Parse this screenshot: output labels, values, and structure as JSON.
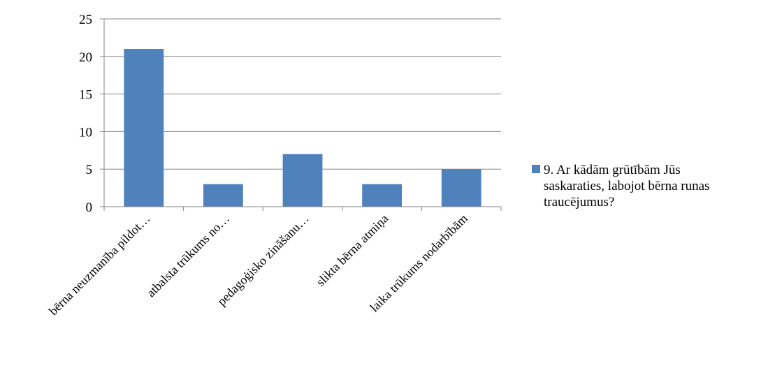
{
  "chart_data": {
    "type": "bar",
    "categories": [
      "bērna neuzmanība  pildot…",
      "atbalsta trūkums no…",
      "pedagoģisko zināšanu…",
      "slikta bērna atmiņa",
      "laika trūkums nodarbībām"
    ],
    "series": [
      {
        "name": "9. Ar kādām grūtībām Jūs saskaraties,  labojot bērna runas traucējumus?",
        "legend_lines": [
          "9. Ar kādām grūtībām Jūs",
          "saskaraties,  labojot bērna runas",
          "traucējumus?"
        ],
        "values": [
          21,
          3,
          7,
          3,
          5
        ],
        "color": "#4f81bd"
      }
    ],
    "y_ticks": [
      "0",
      "5",
      "10",
      "15",
      "20",
      "25"
    ],
    "ylim": [
      0,
      25
    ],
    "grid": true,
    "legend_position": "right",
    "gridline_color": "#868686"
  }
}
